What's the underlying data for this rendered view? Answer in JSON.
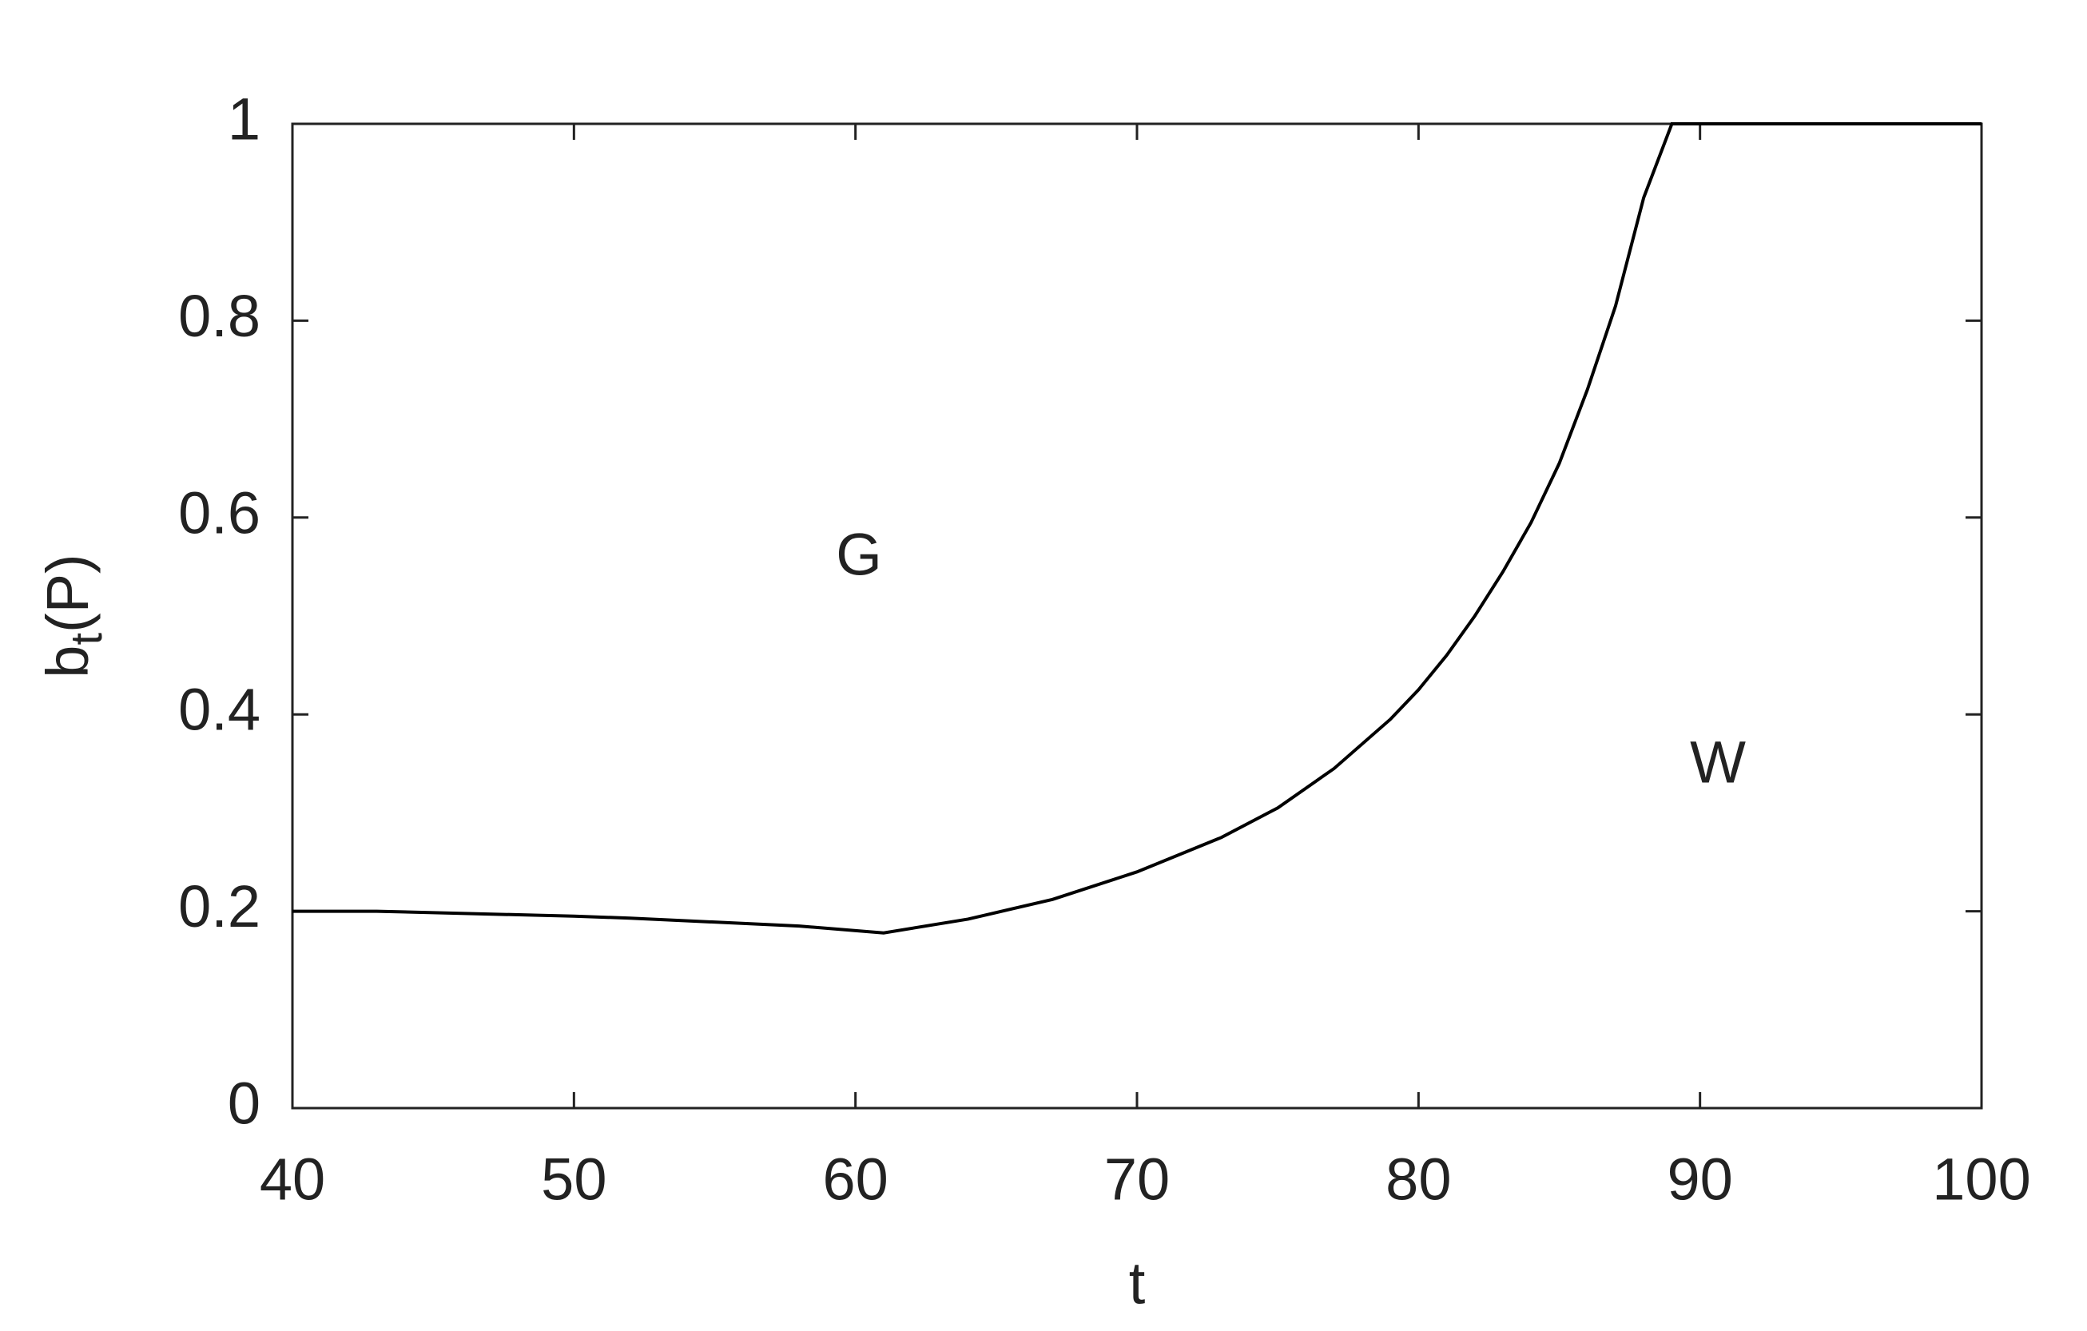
{
  "chart_data": {
    "type": "line",
    "xlabel": "t",
    "ylabel": [
      "b",
      "t",
      "(P)"
    ],
    "x": [
      40,
      43,
      50,
      52,
      58,
      61,
      64,
      67,
      70,
      73,
      75,
      77,
      79,
      80,
      81,
      82,
      83,
      84,
      85,
      86,
      87,
      88,
      89,
      100
    ],
    "series": [
      {
        "color": "#000000",
        "values": [
          0.2,
          0.2,
          0.195,
          0.193,
          0.185,
          0.178,
          0.192,
          0.212,
          0.24,
          0.275,
          0.305,
          0.345,
          0.395,
          0.425,
          0.46,
          0.5,
          0.545,
          0.595,
          0.655,
          0.73,
          0.815,
          0.925,
          1,
          1
        ]
      }
    ],
    "annotations": [
      "G",
      "W"
    ],
    "xlim": [
      40,
      100
    ],
    "xticks": [
      40,
      50,
      60,
      70,
      80,
      90,
      100
    ],
    "ylim": [
      0,
      1
    ],
    "yticks": [
      0,
      0.2,
      0.4,
      0.6,
      0.8,
      1
    ],
    "grid": false
  }
}
